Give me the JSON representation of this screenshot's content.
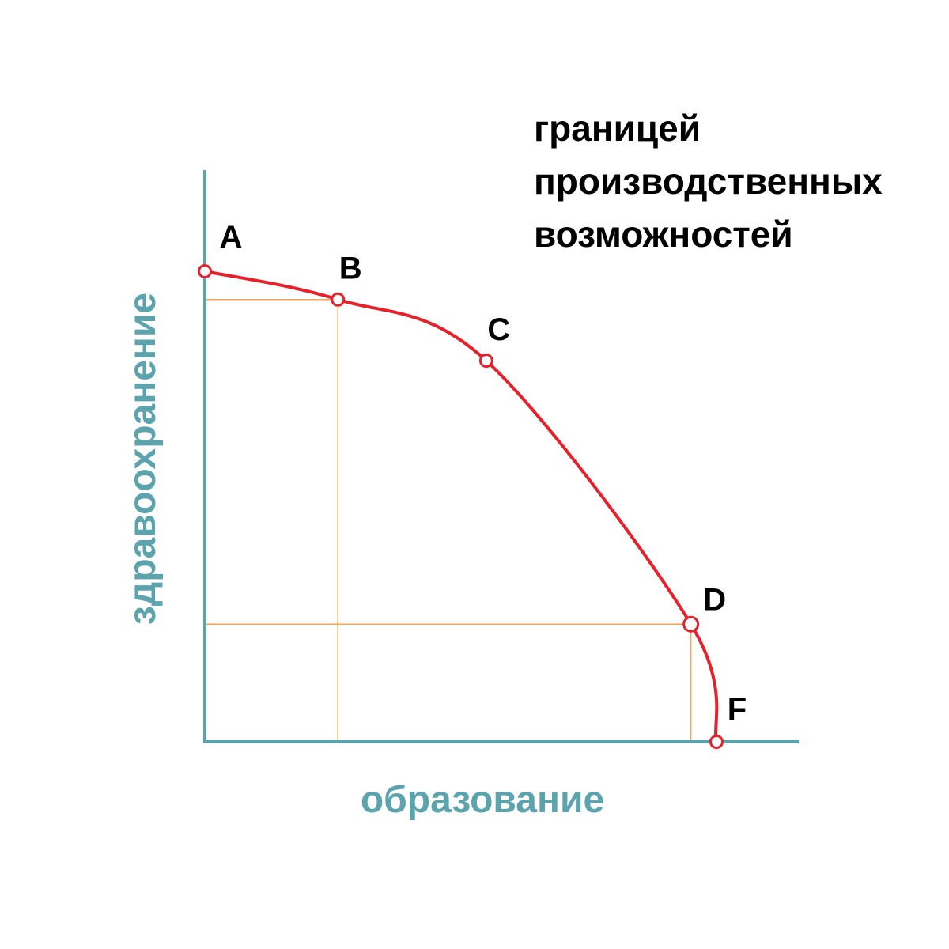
{
  "chart_data": {
    "type": "line",
    "title": "границей производственных возможностей",
    "title_lines": [
      "границей",
      "производственных",
      "возможностей"
    ],
    "xlabel": "образование",
    "ylabel": "здравоохранение",
    "xlim": [
      0,
      100
    ],
    "ylim": [
      0,
      100
    ],
    "grid": false,
    "series": [
      {
        "points": [
          {
            "label": "A",
            "x": 0,
            "y": 100
          },
          {
            "label": "B",
            "x": 26,
            "y": 94
          },
          {
            "label": "C",
            "x": 55,
            "y": 81
          },
          {
            "label": "D",
            "x": 95,
            "y": 25
          },
          {
            "label": "F",
            "x": 100,
            "y": 0
          }
        ]
      }
    ],
    "guides": [
      {
        "point": "B",
        "kind": "drop-lines"
      },
      {
        "point": "D",
        "kind": "drop-lines"
      }
    ],
    "colors": {
      "axis": "#5ba3ad",
      "curve": "#e8202a",
      "guide": "#f5a35a",
      "axis_text": "#5ba3ad",
      "text": "#000000"
    }
  }
}
